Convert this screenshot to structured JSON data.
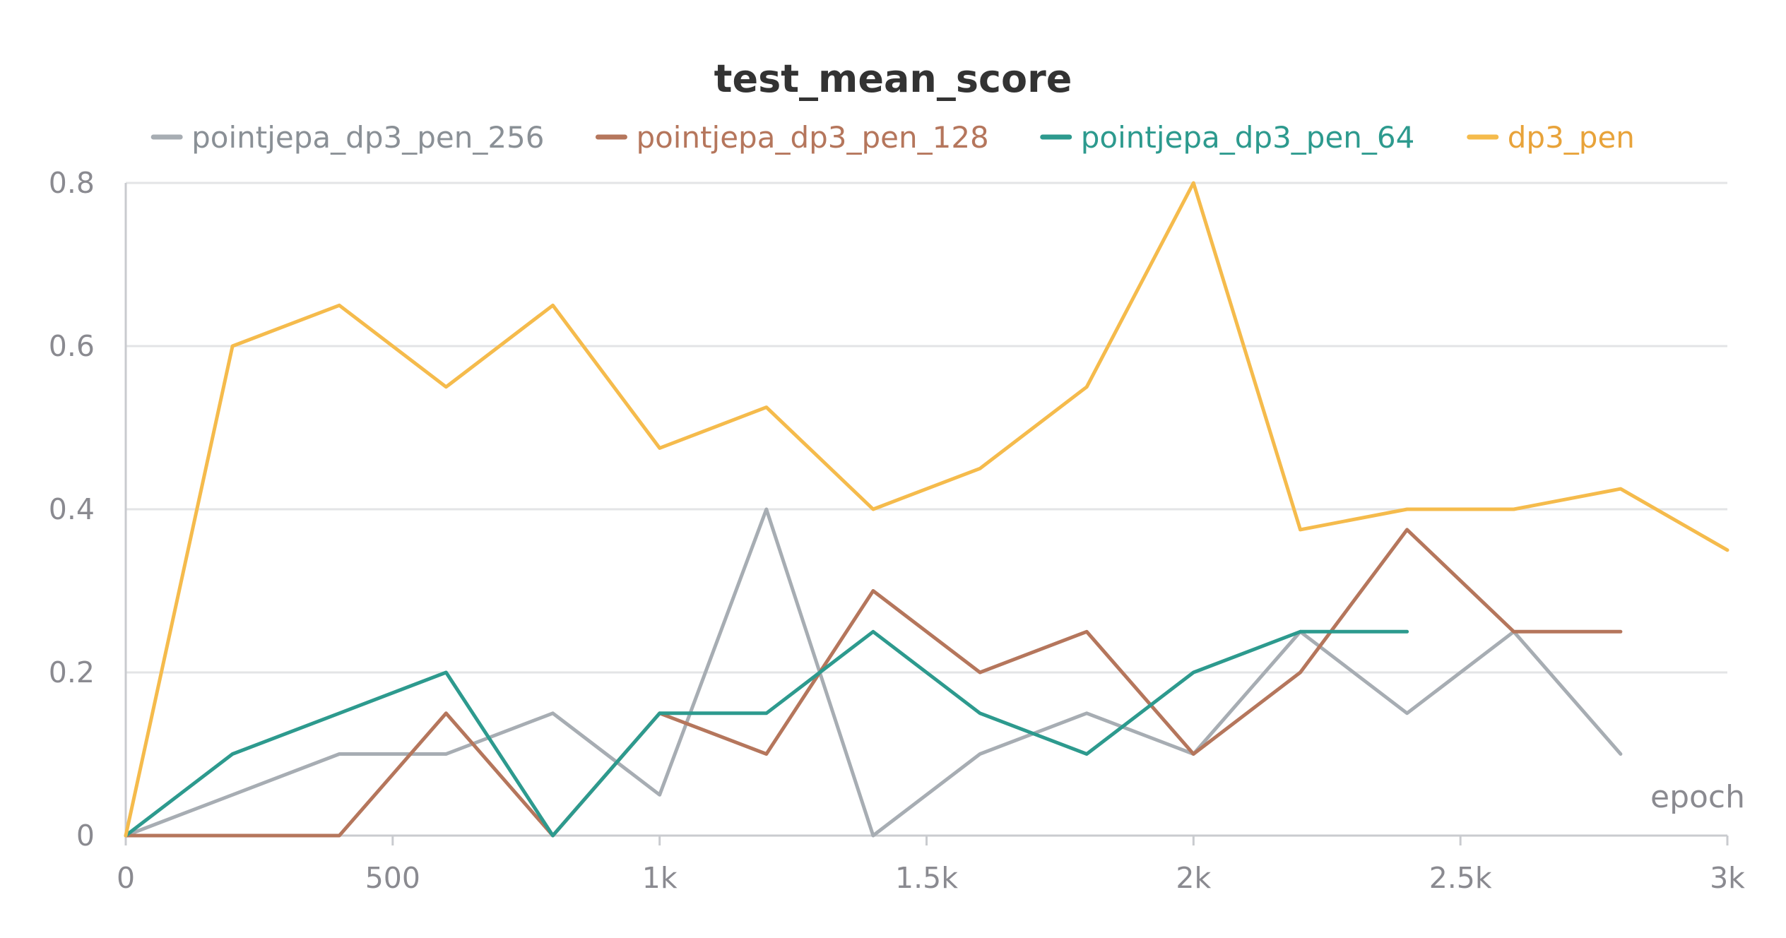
{
  "chart_data": {
    "type": "line",
    "title": "test_mean_score",
    "xlabel": "epoch",
    "ylabel": "",
    "xlim": [
      0,
      3000
    ],
    "ylim": [
      0,
      0.8
    ],
    "grid": true,
    "legend_position": "top",
    "x_ticks": [
      0,
      500,
      1000,
      1500,
      2000,
      2500,
      3000
    ],
    "x_tick_labels": [
      "0",
      "500",
      "1k",
      "1.5k",
      "2k",
      "2.5k",
      "3k"
    ],
    "y_ticks": [
      0,
      0.2,
      0.4,
      0.6,
      0.8
    ],
    "y_tick_labels": [
      "0",
      "0.2",
      "0.4",
      "0.6",
      "0.8"
    ],
    "series": [
      {
        "name": "pointjepa_dp3_pen_256",
        "color": "#a7adb3",
        "x": [
          0,
          200,
          400,
          600,
          800,
          1000,
          1200,
          1400,
          1600,
          1800,
          2000,
          2200,
          2400,
          2600,
          2800
        ],
        "values": [
          0,
          0.05,
          0.1,
          0.1,
          0.15,
          0.05,
          0.4,
          0,
          0.1,
          0.15,
          0.1,
          0.25,
          0.15,
          0.25,
          0.1
        ]
      },
      {
        "name": "pointjepa_dp3_pen_128",
        "color": "#b5765c",
        "x": [
          0,
          200,
          400,
          600,
          800,
          1000,
          1200,
          1400,
          1600,
          1800,
          2000,
          2200,
          2400,
          2600,
          2800
        ],
        "values": [
          0,
          0,
          0,
          0.15,
          0,
          0.15,
          0.1,
          0.3,
          0.2,
          0.25,
          0.1,
          0.2,
          0.375,
          0.25,
          0.25
        ]
      },
      {
        "name": "pointjepa_dp3_pen_64",
        "color": "#2d9a8e",
        "x": [
          0,
          200,
          400,
          600,
          800,
          1000,
          1200,
          1400,
          1600,
          1800,
          2000,
          2200,
          2400
        ],
        "values": [
          0,
          0.1,
          0.15,
          0.2,
          0,
          0.15,
          0.15,
          0.25,
          0.15,
          0.1,
          0.2,
          0.25,
          0.25
        ]
      },
      {
        "name": "dp3_pen",
        "color": "#f5bb4c",
        "x": [
          0,
          200,
          400,
          600,
          800,
          1000,
          1200,
          1400,
          1600,
          1800,
          2000,
          2200,
          2400,
          2600,
          2800,
          3000
        ],
        "values": [
          0,
          0.6,
          0.65,
          0.55,
          0.65,
          0.475,
          0.525,
          0.4,
          0.45,
          0.55,
          0.8,
          0.375,
          0.4,
          0.4,
          0.425,
          0.35
        ]
      }
    ]
  },
  "legend_text_colors": [
    "#8a9096",
    "#b5765c",
    "#2d9a8e",
    "#e8a33a"
  ]
}
